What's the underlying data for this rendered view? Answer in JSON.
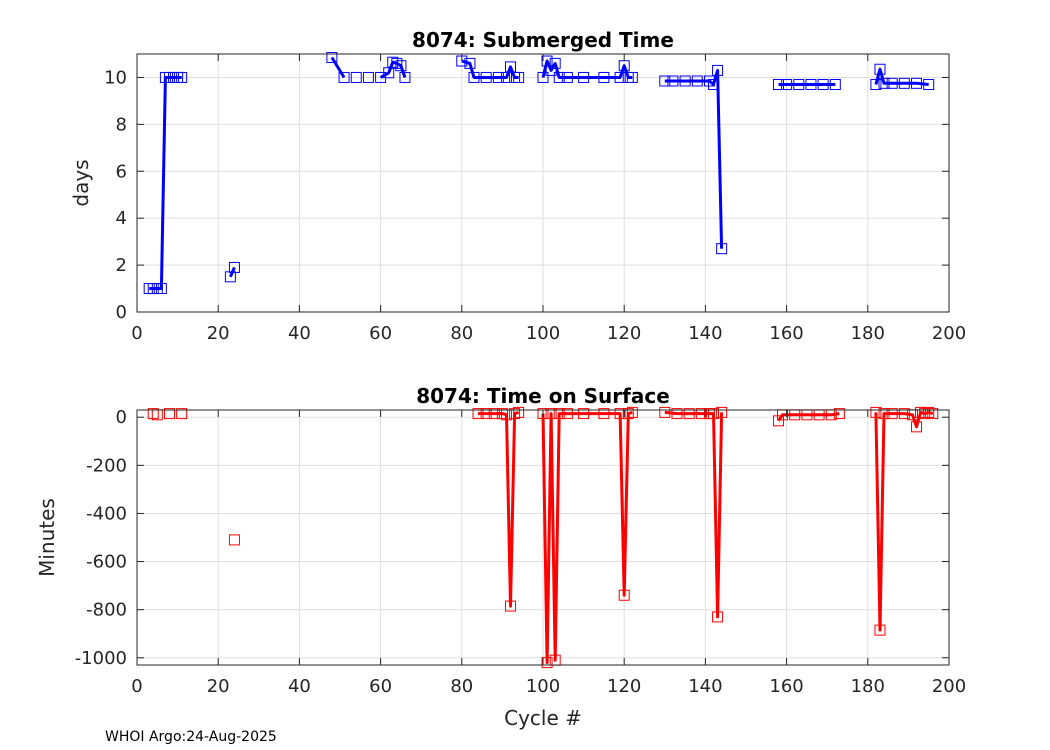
{
  "footer": "WHOI Argo:24-Aug-2025",
  "chart_data": [
    {
      "type": "line",
      "title": "8074: Submerged Time",
      "xlabel": "",
      "ylabel": "days",
      "xlim": [
        0,
        200
      ],
      "ylim": [
        0,
        11
      ],
      "xticks": [
        0,
        20,
        40,
        60,
        80,
        100,
        120,
        140,
        160,
        180,
        200
      ],
      "yticks": [
        0,
        2,
        4,
        6,
        8,
        10
      ],
      "grid": true,
      "color": "#0000ff",
      "marker": "square",
      "series": [
        {
          "x": [
            3,
            4,
            5,
            6,
            7,
            8,
            9,
            10,
            11
          ],
          "y": [
            1.0,
            1.0,
            1.0,
            1.0,
            10.0,
            10.0,
            10.0,
            10.0,
            10.0
          ]
        },
        {
          "x": [
            23,
            24
          ],
          "y": [
            1.5,
            1.9
          ]
        },
        {
          "x": [
            48,
            51,
            54,
            57,
            60,
            62,
            63,
            64,
            65,
            66
          ],
          "y": [
            10.85,
            10.0,
            10.0,
            10.0,
            10.0,
            10.2,
            10.65,
            10.6,
            10.5,
            10.0
          ],
          "segments": [
            [
              0,
              1
            ],
            [
              4,
              9
            ]
          ]
        },
        {
          "x": [
            80,
            82,
            83,
            86,
            89,
            91,
            92,
            93,
            94
          ],
          "y": [
            10.7,
            10.6,
            10.0,
            10.0,
            10.0,
            10.0,
            10.45,
            10.0,
            10.0
          ]
        },
        {
          "x": [
            100,
            101,
            102,
            103,
            104,
            106,
            110,
            115,
            119,
            120,
            121,
            122
          ],
          "y": [
            10.0,
            10.7,
            10.3,
            10.6,
            10.0,
            10.0,
            10.0,
            10.0,
            10.0,
            10.5,
            10.0,
            10.0
          ]
        },
        {
          "x": [
            130,
            132,
            135,
            138,
            141,
            142,
            143,
            144
          ],
          "y": [
            9.85,
            9.85,
            9.85,
            9.85,
            9.85,
            9.7,
            10.3,
            2.7
          ]
        },
        {
          "x": [
            158,
            160,
            163,
            166,
            169,
            172
          ],
          "y": [
            9.7,
            9.7,
            9.7,
            9.7,
            9.7,
            9.7
          ]
        },
        {
          "x": [
            182,
            183,
            184,
            186,
            189,
            192,
            195
          ],
          "y": [
            9.7,
            10.35,
            9.75,
            9.75,
            9.75,
            9.75,
            9.7
          ]
        }
      ]
    },
    {
      "type": "line",
      "title": "8074: Time on Surface",
      "xlabel": "Cycle #",
      "ylabel": "Minutes",
      "xlim": [
        0,
        200
      ],
      "ylim": [
        -1030,
        30
      ],
      "xticks": [
        0,
        20,
        40,
        60,
        80,
        100,
        120,
        140,
        160,
        180,
        200
      ],
      "yticks": [
        0,
        -200,
        -400,
        -600,
        -800,
        -1000
      ],
      "grid": true,
      "color": "#ff0000",
      "marker": "square",
      "series": [
        {
          "x": [
            4,
            5,
            8,
            11
          ],
          "y": [
            15,
            10,
            15,
            15
          ],
          "connected": false
        },
        {
          "x": [
            24
          ],
          "y": [
            -510
          ],
          "connected": false
        },
        {
          "x": [
            84,
            86,
            88,
            90,
            91,
            92,
            93,
            94
          ],
          "y": [
            15,
            15,
            15,
            15,
            10,
            -785,
            15,
            20
          ]
        },
        {
          "x": [
            100,
            101,
            102,
            103,
            104,
            106,
            110,
            115,
            119,
            120,
            121,
            122
          ],
          "y": [
            15,
            -1020,
            15,
            -1010,
            15,
            15,
            15,
            15,
            15,
            -740,
            15,
            20
          ]
        },
        {
          "x": [
            130,
            133,
            136,
            139,
            141,
            142,
            143,
            144
          ],
          "y": [
            20,
            15,
            15,
            15,
            15,
            15,
            -830,
            20
          ]
        },
        {
          "x": [
            158,
            159,
            162,
            165,
            168,
            171,
            173
          ],
          "y": [
            -15,
            10,
            10,
            10,
            10,
            10,
            15
          ]
        },
        {
          "x": [
            182,
            183,
            184,
            186,
            189,
            191,
            192,
            193,
            194,
            195,
            196
          ],
          "y": [
            20,
            -885,
            15,
            15,
            15,
            10,
            -40,
            20,
            15,
            20,
            15
          ]
        }
      ]
    }
  ]
}
